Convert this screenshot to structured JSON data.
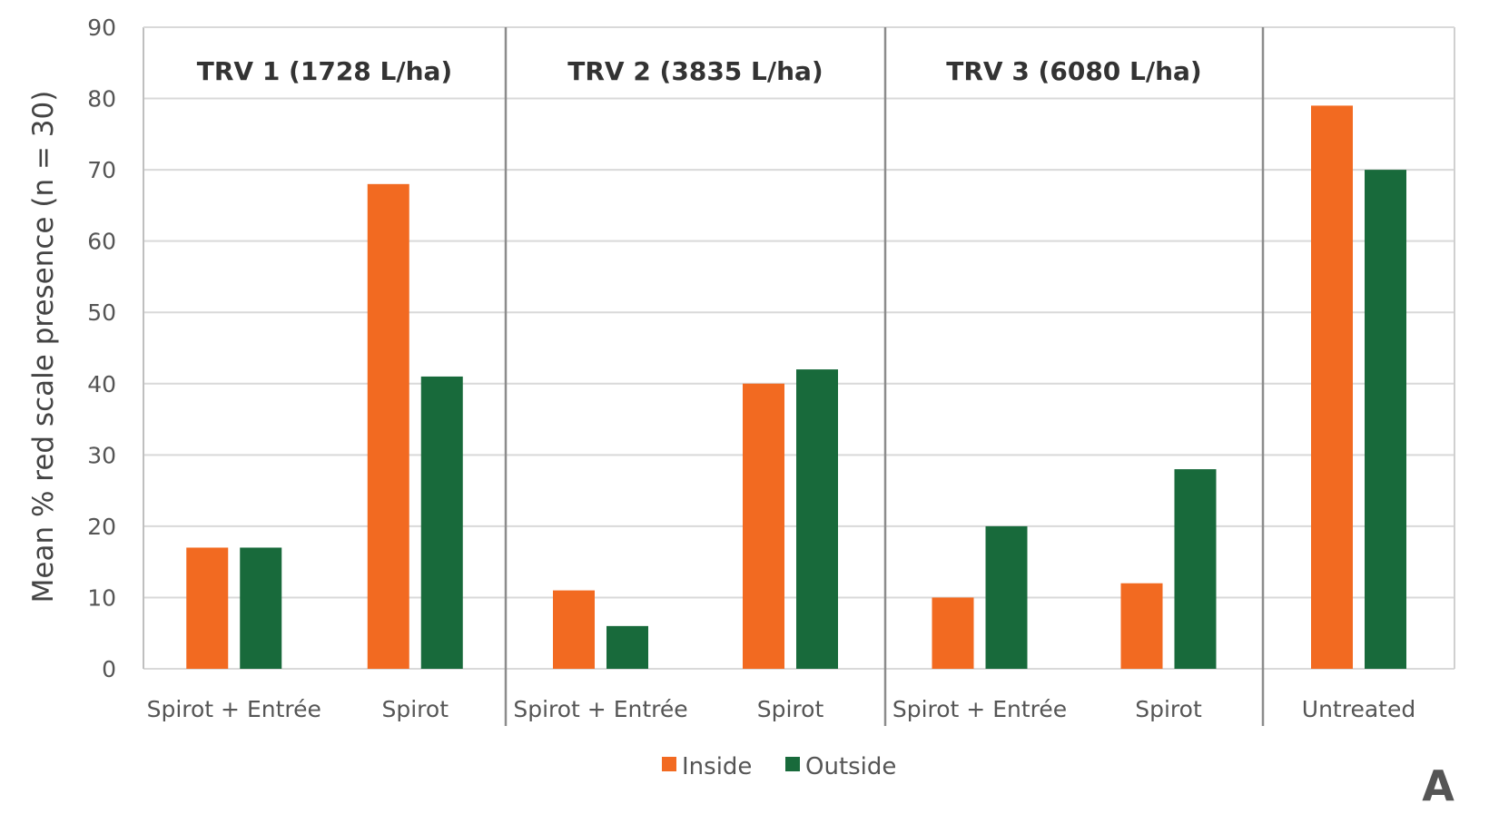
{
  "chart_data": {
    "type": "bar",
    "ylabel": "Mean % red scale presence (n = 30)",
    "ylim": [
      0,
      90
    ],
    "yticks": [
      0,
      10,
      20,
      30,
      40,
      50,
      60,
      70,
      80,
      90
    ],
    "grid": true,
    "panels": [
      {
        "title": "TRV 1 (1728 L/ha)",
        "categories": [
          "Spirot + Entrée",
          "Spirot"
        ],
        "inside": [
          17,
          68
        ],
        "outside": [
          17,
          41
        ]
      },
      {
        "title": "TRV 2 (3835 L/ha)",
        "categories": [
          "Spirot + Entrée",
          "Spirot"
        ],
        "inside": [
          11,
          40
        ],
        "outside": [
          6,
          42
        ]
      },
      {
        "title": "TRV 3 (6080 L/ha)",
        "categories": [
          "Spirot + Entrée",
          "Spirot"
        ],
        "inside": [
          10,
          12
        ],
        "outside": [
          20,
          28
        ]
      },
      {
        "title": "",
        "categories": [
          "Untreated"
        ],
        "inside": [
          79
        ],
        "outside": [
          70
        ]
      }
    ],
    "series": [
      {
        "name": "Inside",
        "color": "#f26a21"
      },
      {
        "name": "Outside",
        "color": "#186a3b"
      }
    ],
    "legend_position": "bottom-center",
    "panel_letter": "A"
  }
}
